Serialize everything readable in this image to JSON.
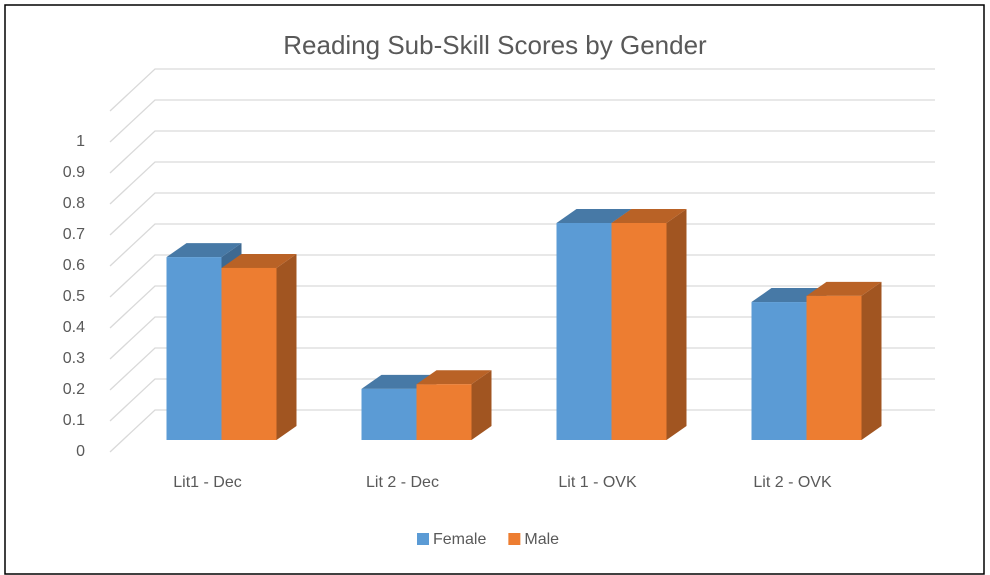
{
  "chart_data": {
    "type": "bar3d",
    "title": "Reading Sub-Skill Scores by Gender",
    "categories": [
      "Lit1 - Dec",
      "Lit 2 - Dec",
      "Lit 1 - OVK",
      "Lit 2 - OVK"
    ],
    "series": [
      {
        "name": "Female",
        "color": "#5b9bd5",
        "values": [
          0.59,
          0.165,
          0.7,
          0.445
        ]
      },
      {
        "name": "Male",
        "color": "#ed7d31",
        "values": [
          0.555,
          0.18,
          0.7,
          0.465
        ]
      }
    ],
    "ylim": [
      0,
      1.1
    ],
    "yticks": [
      0,
      0.1,
      0.2,
      0.3,
      0.4,
      0.5,
      0.6,
      0.7,
      0.8,
      0.9,
      1
    ],
    "grid": true,
    "legend": "bottom"
  }
}
